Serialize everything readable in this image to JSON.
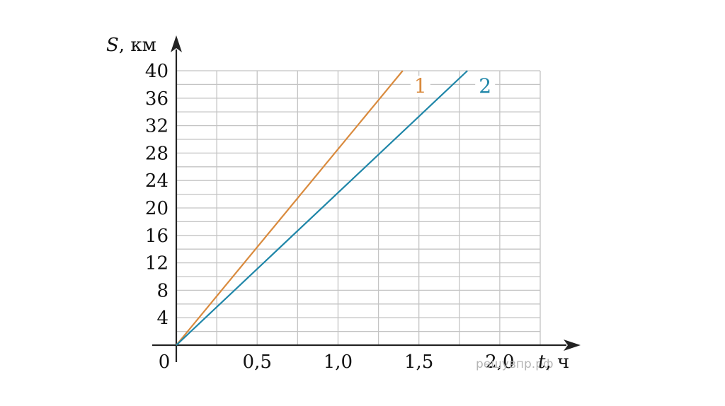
{
  "chart_data": {
    "type": "line",
    "x_axis": {
      "symbol": "t",
      "unit": ", ч",
      "range": [
        0,
        2.25
      ],
      "tick_labels": [
        "0,5",
        "1,0",
        "1,5",
        "2,0"
      ],
      "tick_values": [
        0.5,
        1.0,
        1.5,
        2.0
      ],
      "minor_step": 0.25
    },
    "y_axis": {
      "symbol": "S",
      "unit": ", км",
      "range": [
        0,
        40
      ],
      "tick_labels": [
        "4",
        "8",
        "12",
        "16",
        "20",
        "24",
        "28",
        "32",
        "36",
        "40"
      ],
      "tick_values": [
        4,
        8,
        12,
        16,
        20,
        24,
        28,
        32,
        36,
        40
      ],
      "minor_step": 2
    },
    "origin_label": "0",
    "grid": true,
    "series": [
      {
        "name": "1",
        "color": "#d98a3d",
        "x": [
          0,
          1.4
        ],
        "y": [
          0,
          40
        ]
      },
      {
        "name": "2",
        "color": "#1f86a8",
        "x": [
          0,
          1.8
        ],
        "y": [
          0,
          40
        ]
      }
    ]
  },
  "watermark": "решувпр.рф"
}
